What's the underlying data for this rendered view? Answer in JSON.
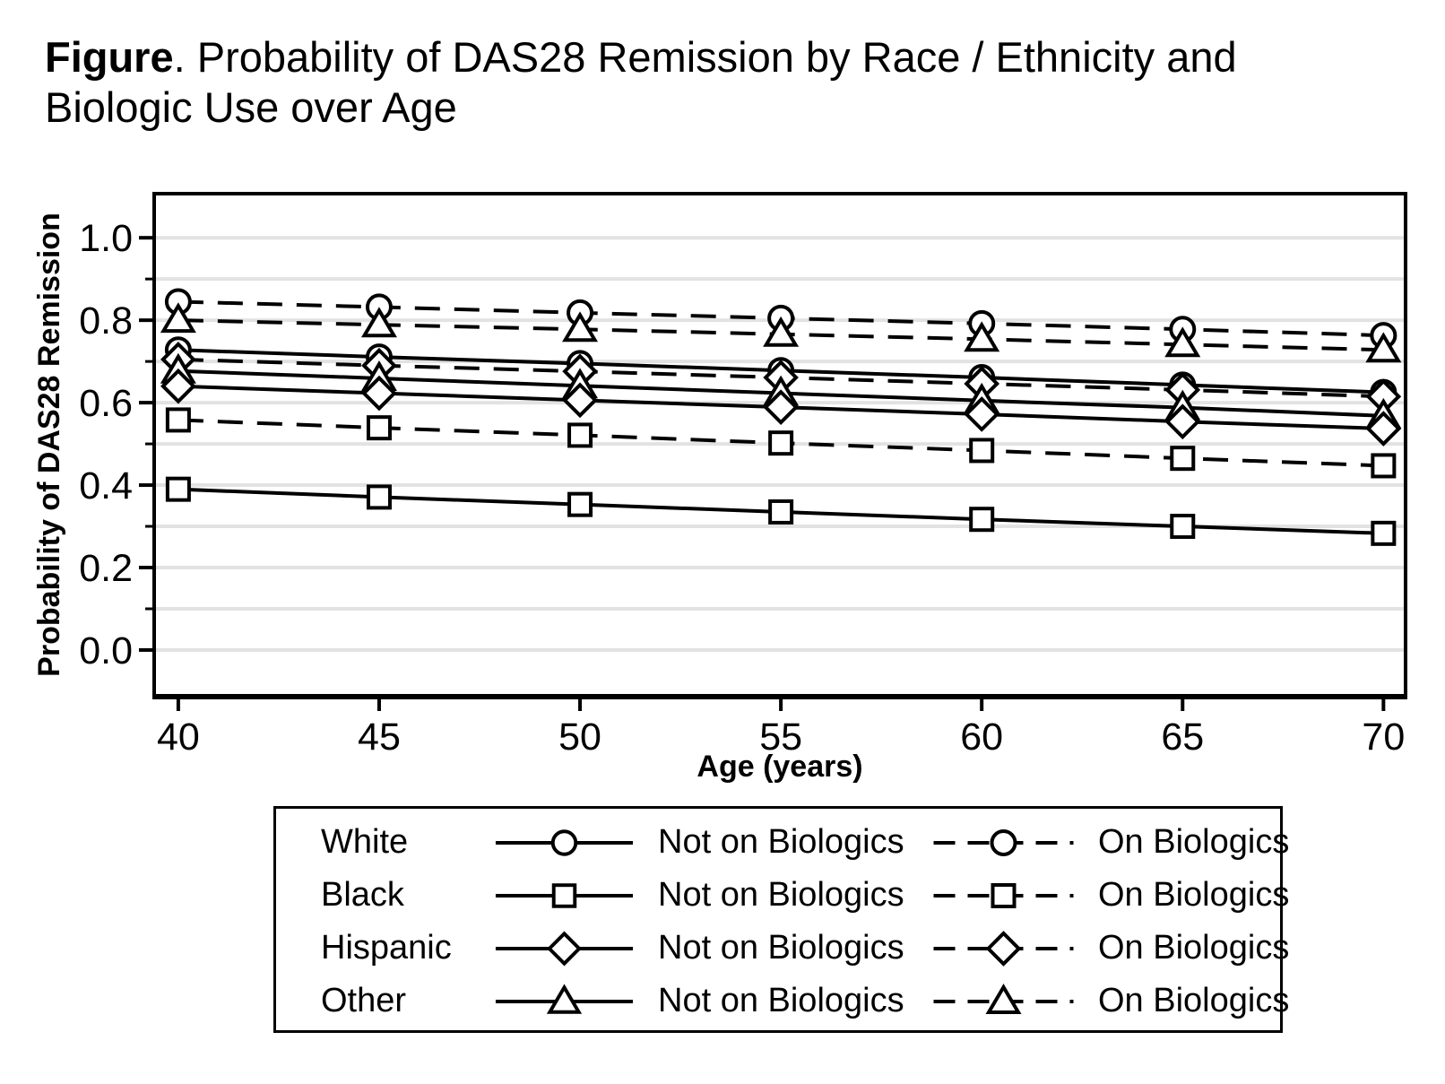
{
  "title": {
    "prefix": "Figure",
    "line1_rest": ". Probability of DAS28 Remission by Race / Ethnicity and",
    "line2": "Biologic Use over Age"
  },
  "chart_data": {
    "type": "line",
    "title": "Figure. Probability of DAS28 Remission by Race / Ethnicity and Biologic Use over Age",
    "xlabel": "Age (years)",
    "ylabel": "Probability of DAS28 Remission",
    "x": [
      40,
      45,
      50,
      55,
      60,
      65,
      70
    ],
    "xlim": [
      39.4,
      70.55
    ],
    "ylim": [
      -0.111,
      1.107
    ],
    "x_ticks": [
      40,
      45,
      50,
      55,
      60,
      65,
      70
    ],
    "x_tick_labels": [
      "40",
      "45",
      "50",
      "55",
      "60",
      "65",
      "70"
    ],
    "y_major_ticks": [
      0,
      0.2,
      0.4,
      0.6,
      0.8,
      1
    ],
    "y_tick_labels": [
      "0.0",
      "0.2",
      "0.4",
      "0.6",
      "0.8",
      "1.0"
    ],
    "y_minor_ticks": [
      0.1,
      0.3,
      0.5,
      0.7,
      0.9
    ],
    "grid_values": [
      0,
      0.1,
      0.2,
      0.3,
      0.4,
      0.5,
      0.6,
      0.7,
      0.8,
      0.9,
      1
    ],
    "grid": "horizontal",
    "legend_position": "bottom",
    "colors": {
      "line": "#000000",
      "grid": "#e2e2e2",
      "background": "#ffffff"
    },
    "series": [
      {
        "name": "White - On Biologics",
        "race": "White",
        "biologic_use": "On Biologics",
        "marker": "circle",
        "line": "dashed",
        "values": [
          0.845,
          0.832,
          0.818,
          0.805,
          0.792,
          0.778,
          0.763
        ]
      },
      {
        "name": "Other - On Biologics",
        "race": "Other",
        "biologic_use": "On Biologics",
        "marker": "triangle",
        "line": "dashed",
        "values": [
          0.8,
          0.789,
          0.778,
          0.766,
          0.754,
          0.741,
          0.728
        ]
      },
      {
        "name": "White - Not on Biologics",
        "race": "White",
        "biologic_use": "Not on Biologics",
        "marker": "circle",
        "line": "solid",
        "values": [
          0.728,
          0.711,
          0.695,
          0.678,
          0.661,
          0.643,
          0.625
        ]
      },
      {
        "name": "Hispanic - On Biologics",
        "race": "Hispanic",
        "biologic_use": "On Biologics",
        "marker": "diamond",
        "line": "dashed",
        "values": [
          0.705,
          0.69,
          0.676,
          0.661,
          0.646,
          0.631,
          0.615
        ]
      },
      {
        "name": "Other - Not on Biologics",
        "race": "Other",
        "biologic_use": "Not on Biologics",
        "marker": "triangle",
        "line": "solid",
        "values": [
          0.677,
          0.659,
          0.641,
          0.623,
          0.605,
          0.588,
          0.568
        ]
      },
      {
        "name": "Hispanic - Not on Biologics",
        "race": "Hispanic",
        "biologic_use": "Not on Biologics",
        "marker": "diamond",
        "line": "solid",
        "values": [
          0.64,
          0.623,
          0.606,
          0.589,
          0.572,
          0.554,
          0.537
        ]
      },
      {
        "name": "Black - On Biologics",
        "race": "Black",
        "biologic_use": "On Biologics",
        "marker": "square",
        "line": "dashed",
        "values": [
          0.558,
          0.539,
          0.521,
          0.502,
          0.484,
          0.465,
          0.447
        ]
      },
      {
        "name": "Black - Not on Biologics",
        "race": "Black",
        "biologic_use": "Not on Biologics",
        "marker": "square",
        "line": "solid",
        "values": [
          0.39,
          0.371,
          0.353,
          0.335,
          0.317,
          0.3,
          0.283
        ]
      }
    ]
  },
  "legend": {
    "rows": [
      {
        "race": "White",
        "marker": "circle"
      },
      {
        "race": "Black",
        "marker": "square"
      },
      {
        "race": "Hispanic",
        "marker": "diamond"
      },
      {
        "race": "Other",
        "marker": "triangle"
      }
    ],
    "not_on_label": "Not on Biologics",
    "on_label": "On Biologics"
  }
}
